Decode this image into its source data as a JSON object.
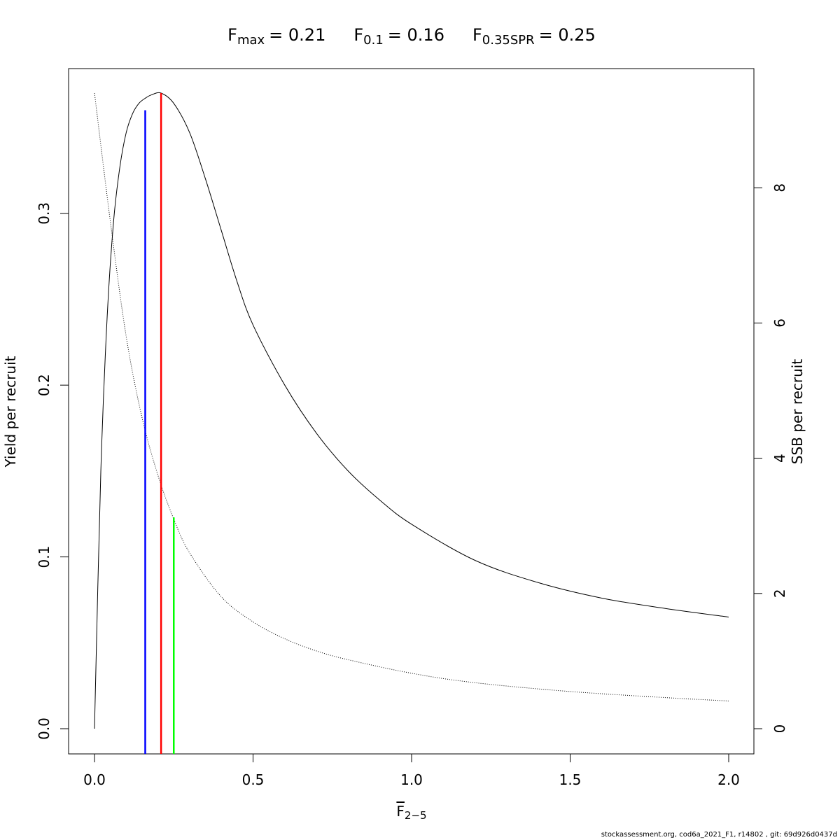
{
  "chart_data": {
    "type": "line",
    "title": {
      "fmax": {
        "base": "F",
        "sub": "max",
        "value": "= 0.21"
      },
      "f01": {
        "base": "F",
        "sub": "0.1",
        "value": "= 0.16"
      },
      "fspr": {
        "base": "F",
        "sub": "0.35SPR",
        "value": "= 0.25"
      }
    },
    "xlabel": {
      "base": "F",
      "sub": "2−5"
    },
    "ylabel_left": "Yield per recruit",
    "ylabel_right": "SSB per recruit",
    "xlim": [
      0,
      2
    ],
    "ylim_left": [
      0,
      0.37
    ],
    "ylim_right": [
      0,
      9.4
    ],
    "x_ticks": [
      "0.0",
      "0.5",
      "1.0",
      "1.5",
      "2.0"
    ],
    "y_left_ticks": [
      "0.0",
      "0.1",
      "0.2",
      "0.3"
    ],
    "y_right_ticks": [
      "0",
      "2",
      "4",
      "6",
      "8"
    ],
    "series": [
      {
        "name": "",
        "axis": "left",
        "style": "solid",
        "x": [
          0,
          0.02,
          0.04,
          0.06,
          0.08,
          0.1,
          0.12,
          0.14,
          0.16,
          0.18,
          0.21,
          0.25,
          0.3,
          0.35,
          0.4,
          0.45,
          0.5,
          0.6,
          0.7,
          0.8,
          0.9,
          1.0,
          1.2,
          1.4,
          1.6,
          1.8,
          2.0
        ],
        "values": [
          0,
          0.15,
          0.24,
          0.295,
          0.327,
          0.347,
          0.358,
          0.364,
          0.367,
          0.369,
          0.37,
          0.364,
          0.347,
          0.32,
          0.29,
          0.26,
          0.235,
          0.2,
          0.172,
          0.15,
          0.133,
          0.119,
          0.098,
          0.085,
          0.076,
          0.07,
          0.065
        ]
      },
      {
        "name": "",
        "axis": "right",
        "style": "dotted",
        "x": [
          0,
          0.05,
          0.1,
          0.15,
          0.2,
          0.25,
          0.3,
          0.4,
          0.5,
          0.6,
          0.7,
          0.8,
          1.0,
          1.2,
          1.5,
          1.8,
          2.0
        ],
        "values": [
          9.4,
          7.5,
          5.8,
          4.6,
          3.75,
          3.1,
          2.6,
          1.95,
          1.58,
          1.33,
          1.15,
          1.02,
          0.82,
          0.68,
          0.55,
          0.46,
          0.41
        ]
      }
    ],
    "reference_lines": [
      {
        "x": 0.16,
        "y_left_top": 0.36,
        "color": "#0000ff"
      },
      {
        "x": 0.21,
        "y_left_top": 0.37,
        "color": "#ff0000"
      },
      {
        "x": 0.25,
        "y_left_top": 0.123,
        "color": "#00ff00"
      }
    ],
    "grid": false
  },
  "footer": "stockassessment.org, cod6a_2021_F1, r14802 , git: 69d926d0437d"
}
